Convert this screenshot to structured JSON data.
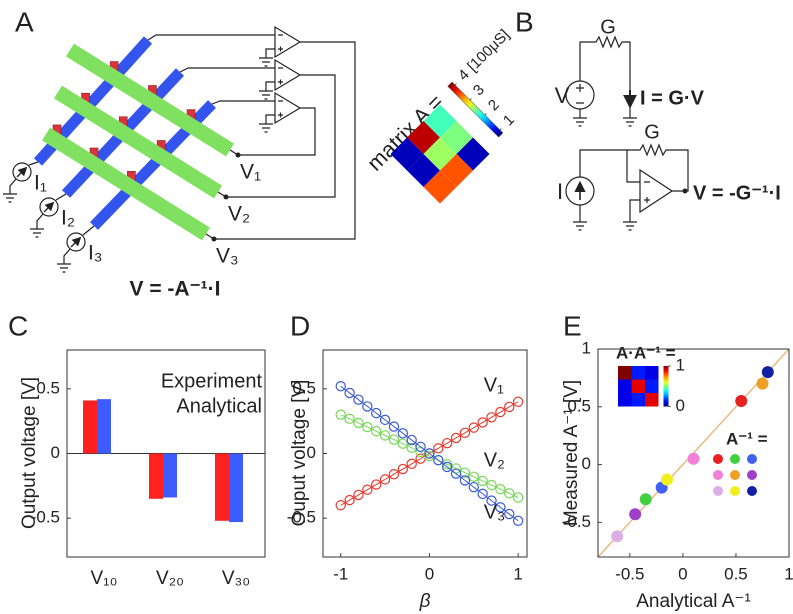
{
  "panel_a": {
    "label": "A",
    "currents": [
      "I₁",
      "I₂",
      "I₃"
    ],
    "voltages": [
      "V₁",
      "V₂",
      "V₃"
    ],
    "equation": "V = -A⁻¹·I",
    "matrix": {
      "title": "matrix A =",
      "unit": "[100μS]",
      "colormap": "jet",
      "values": [
        [
          2.3,
          2.5,
          1
        ],
        [
          4,
          2.6,
          3.5
        ],
        [
          1,
          1,
          3.5
        ]
      ],
      "clim": [
        0.8,
        4.2
      ],
      "cticks": [
        1,
        2,
        3,
        4
      ]
    }
  },
  "panel_b": {
    "label": "B",
    "resistor_top": "G",
    "source_top": "V",
    "equation_top": "I = G·V",
    "resistor_bottom": "G",
    "source_bottom": "I",
    "equation_bottom": "V = -G⁻¹·I"
  },
  "chart_data": [
    {
      "type": "bar",
      "label": "C",
      "ylabel": "Output voltage [V]",
      "categories": [
        "V₁₀",
        "V₂₀",
        "V₃₀"
      ],
      "series": [
        {
          "name": "Experiment",
          "color": "#ff2020",
          "values": [
            0.41,
            -0.35,
            -0.52
          ]
        },
        {
          "name": "Analytical",
          "color": "#3c5cff",
          "values": [
            0.42,
            -0.34,
            -0.53
          ]
        }
      ],
      "ylim": [
        -0.8,
        0.8
      ],
      "yticks": [
        -0.5,
        0,
        0.5
      ],
      "legend": "upper right"
    },
    {
      "type": "line",
      "label": "D",
      "xlabel": "β",
      "ylabel": "Ouput voltage [V]",
      "marker": "circle",
      "x": [
        -1,
        -0.9,
        -0.8,
        -0.7,
        -0.6,
        -0.5,
        -0.4,
        -0.3,
        -0.2,
        -0.1,
        0,
        0.1,
        0.2,
        0.3,
        0.4,
        0.5,
        0.6,
        0.7,
        0.8,
        0.9,
        1
      ],
      "series": [
        {
          "name": "V₁",
          "color": "#e8392e",
          "values": [
            -0.4,
            -0.36,
            -0.32,
            -0.28,
            -0.24,
            -0.2,
            -0.16,
            -0.12,
            -0.08,
            -0.04,
            0,
            0.04,
            0.08,
            0.12,
            0.16,
            0.2,
            0.24,
            0.28,
            0.32,
            0.36,
            0.4
          ]
        },
        {
          "name": "V₂",
          "color": "#78d85a",
          "values": [
            0.3,
            0.268,
            0.236,
            0.204,
            0.172,
            0.14,
            0.108,
            0.076,
            0.044,
            0.012,
            -0.02,
            -0.052,
            -0.084,
            -0.116,
            -0.148,
            -0.18,
            -0.212,
            -0.244,
            -0.276,
            -0.308,
            -0.34
          ]
        },
        {
          "name": "V₃",
          "color": "#3a5ad8",
          "values": [
            0.52,
            0.468,
            0.416,
            0.364,
            0.312,
            0.26,
            0.208,
            0.156,
            0.104,
            0.052,
            0,
            -0.052,
            -0.104,
            -0.156,
            -0.208,
            -0.26,
            -0.312,
            -0.364,
            -0.416,
            -0.468,
            -0.52
          ]
        }
      ],
      "xlim": [
        -1.2,
        1.1
      ],
      "xticks": [
        -1,
        0,
        1
      ],
      "ylim": [
        -0.8,
        0.8
      ],
      "yticks": [
        -0.5,
        0,
        0.5
      ]
    },
    {
      "type": "scatter",
      "label": "E",
      "xlabel": "Analytical A⁻¹",
      "ylabel": "Measured A⁻¹ [V]",
      "x": [
        0.55,
        -0.35,
        -0.2,
        0.1,
        0.75,
        -0.45,
        -0.62,
        -0.15,
        0.8
      ],
      "values": [
        0.55,
        -0.3,
        -0.2,
        0.05,
        0.7,
        -0.43,
        -0.62,
        -0.13,
        0.8
      ],
      "colors": [
        "#e82020",
        "#40d040",
        "#4060f0",
        "#f080d8",
        "#f0a020",
        "#a040c8",
        "#dcaee8",
        "#f0f020",
        "#1020a0"
      ],
      "xlim": [
        -0.8,
        1
      ],
      "xticks": [
        -0.5,
        0,
        0.5,
        1
      ],
      "ylim": [
        -0.8,
        1
      ],
      "yticks": [
        -0.5,
        0,
        0.5,
        1
      ],
      "diagonal": true,
      "diagonal_color": "#e9b77a",
      "inset": {
        "title": "A·A⁻¹ =",
        "colormap": "jet",
        "values": [
          [
            1,
            0.15,
            0.1
          ],
          [
            0.1,
            0.9,
            0.15
          ],
          [
            0.1,
            0.15,
            0.9
          ]
        ],
        "clim": [
          0,
          1
        ],
        "cticks": [
          0,
          1
        ]
      },
      "grid_title": "A⁻¹ ="
    }
  ]
}
